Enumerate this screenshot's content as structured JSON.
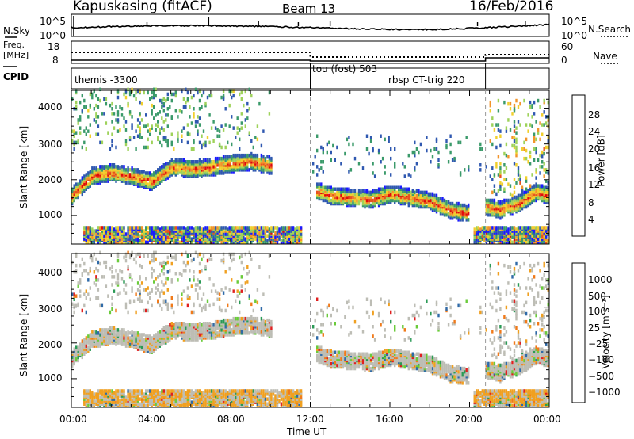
{
  "header": {
    "station": "Kapuskasing (fitACF)",
    "beam": "Beam 13",
    "date": "16/Feb/2016"
  },
  "top_panels": {
    "nsky_label": "N.Sky",
    "nsearch_label": "N.Search",
    "nsky_ticks": [
      "10^5",
      "10^0"
    ],
    "nsearch_ticks": [
      "10^5",
      "10^0"
    ],
    "freq_label_line1": "Freq.",
    "freq_label_line2": "[MHz]",
    "freq_ticks": [
      "18",
      "8"
    ],
    "nave_label": "Nave",
    "nave_ticks": [
      "60",
      "0"
    ],
    "cpid_label": "CPID",
    "cpid_segments": [
      "themis -3300",
      "tou (fost) 503",
      "rbsp CT-trig 220"
    ]
  },
  "chart_data": [
    {
      "type": "heatmap",
      "panel": "power",
      "ylabel": "Slant Range [km]",
      "ylim": [
        200,
        4500
      ],
      "yticks": [
        "1000",
        "2000",
        "3000",
        "4000"
      ],
      "xlim": [
        "00:00",
        "24:00"
      ],
      "colorbar_label": "Power [dB]",
      "colorbar_ticks": [
        "4",
        "8",
        "12",
        "16",
        "20",
        "24",
        "28"
      ],
      "colors": [
        "#1a1aff",
        "#2f58b0",
        "#3a9a6a",
        "#9ed25a",
        "#f1cf2c",
        "#f2942a",
        "#e8531e",
        "#e00a0a"
      ],
      "main_bands": [
        {
          "t": [
            0.0,
            1.0,
            2.0,
            3.0,
            4.0,
            5.0,
            6.0,
            7.0,
            8.0,
            9.0,
            10.0
          ],
          "range": [
            1500,
            2050,
            2150,
            2050,
            1900,
            2300,
            2250,
            2300,
            2400,
            2450,
            2350
          ]
        },
        {
          "t": [
            12.2,
            13.0,
            14.0,
            15.0,
            16.0,
            17.0,
            18.0,
            19.0,
            20.0
          ],
          "range": [
            1650,
            1500,
            1450,
            1400,
            1550,
            1450,
            1350,
            1100,
            1000
          ]
        },
        {
          "t": [
            20.8,
            21.5,
            22.5,
            23.3,
            24.0
          ],
          "range": [
            1200,
            1100,
            1300,
            1600,
            1500
          ]
        }
      ]
    },
    {
      "type": "heatmap",
      "panel": "velocity",
      "ylabel": "Slant Range [km]",
      "ylim": [
        200,
        4500
      ],
      "yticks": [
        "1000",
        "2000",
        "3000",
        "4000"
      ],
      "xlim": [
        "00:00",
        "24:00"
      ],
      "xticks": [
        "00:00",
        "04:00",
        "08:00",
        "12:00",
        "16:00",
        "20:00",
        "00:00"
      ],
      "xlabel": "Time UT",
      "colorbar_label": "Velocity [m s⁻¹]",
      "colorbar_ticks": [
        "1000",
        "500",
        "100",
        "25",
        "−25",
        "−100",
        "−500",
        "−1000"
      ],
      "colors": [
        "#2a3fc0",
        "#2f6aa8",
        "#2a9a55",
        "#6acb3a",
        "#bdbdb5",
        "#b9b9b1",
        "#f0a020",
        "#f07a1a",
        "#e02020"
      ]
    }
  ]
}
